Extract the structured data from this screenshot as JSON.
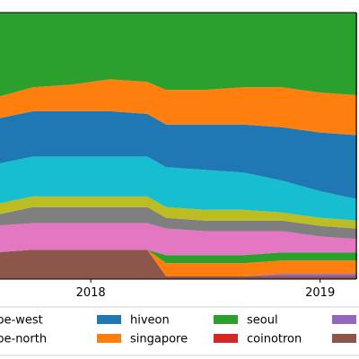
{
  "chart_data": {
    "type": "area",
    "stacked": true,
    "normalized": true,
    "x": [
      "2017-08",
      "2017-10",
      "2017-12",
      "2018-02",
      "2018-04",
      "2018-05",
      "2018-07",
      "2018-09",
      "2018-11",
      "2019-01",
      "2019-03"
    ],
    "xticks": [
      {
        "date": "2018-01-01",
        "label": "2018"
      },
      {
        "date": "2019-01-01",
        "label": "2019"
      }
    ],
    "ylim": [
      0,
      1
    ],
    "grid": false,
    "legend_placement": "bottom",
    "series": [
      {
        "name": "",
        "color": "#8c564b",
        "values": [
          0.1,
          0.11,
          0.11,
          0.11,
          0.11,
          0.01,
          0.01,
          0.01,
          0.01,
          0.01,
          0.01
        ]
      },
      {
        "name": "",
        "color": "#9467bd",
        "values": [
          0.0,
          0.0,
          0.0,
          0.0,
          0.0,
          0.0,
          0.0,
          0.0,
          0.01,
          0.01,
          0.01
        ]
      },
      {
        "name": "",
        "color": "#ff7f0e",
        "values": [
          0.0,
          0.0,
          0.0,
          0.0,
          0.0,
          0.05,
          0.05,
          0.05,
          0.05,
          0.05,
          0.05
        ]
      },
      {
        "name": "",
        "color": "#2ca02c",
        "values": [
          0.0,
          0.0,
          0.0,
          0.0,
          0.0,
          0.03,
          0.03,
          0.03,
          0.03,
          0.03,
          0.03
        ]
      },
      {
        "name": "",
        "color": "#e377c2",
        "values": [
          0.1,
          0.1,
          0.1,
          0.1,
          0.1,
          0.1,
          0.09,
          0.09,
          0.08,
          0.06,
          0.05
        ]
      },
      {
        "name": "",
        "color": "#7f7f7f",
        "values": [
          0.04,
          0.06,
          0.06,
          0.06,
          0.06,
          0.04,
          0.04,
          0.04,
          0.04,
          0.04,
          0.04
        ]
      },
      {
        "name": "",
        "color": "#bcbd22",
        "values": [
          0.04,
          0.04,
          0.04,
          0.04,
          0.04,
          0.04,
          0.04,
          0.04,
          0.03,
          0.03,
          0.03
        ]
      },
      {
        "name": "",
        "color": "#17becf",
        "values": [
          0.15,
          0.15,
          0.15,
          0.15,
          0.15,
          0.15,
          0.15,
          0.14,
          0.12,
          0.1,
          0.08
        ]
      },
      {
        "name": "hiveon",
        "color": "#1f77b4",
        "values": [
          0.17,
          0.17,
          0.17,
          0.17,
          0.16,
          0.16,
          0.17,
          0.18,
          0.2,
          0.22,
          0.24
        ]
      },
      {
        "name": "singapore",
        "color": "#ff7f0e",
        "values": [
          0.08,
          0.09,
          0.1,
          0.12,
          0.12,
          0.13,
          0.13,
          0.14,
          0.15,
          0.15,
          0.15
        ]
      },
      {
        "name": "seoul",
        "color": "#2ca02c",
        "values": [
          0.32,
          0.28,
          0.27,
          0.25,
          0.26,
          0.29,
          0.29,
          0.24,
          0.28,
          0.3,
          0.31
        ]
      }
    ],
    "legend": [
      {
        "label": "europe-west",
        "color": "#17becf"
      },
      {
        "label": "europe-north",
        "color": "#bcbd22"
      },
      {
        "label": "hiveon",
        "color": "#1f77b4"
      },
      {
        "label": "singapore",
        "color": "#ff7f0e"
      },
      {
        "label": "seoul",
        "color": "#2ca02c"
      },
      {
        "label": "coinotron",
        "color": "#d62728"
      },
      {
        "label": "",
        "color": "#9467bd"
      },
      {
        "label": "",
        "color": "#8c564b"
      }
    ]
  }
}
